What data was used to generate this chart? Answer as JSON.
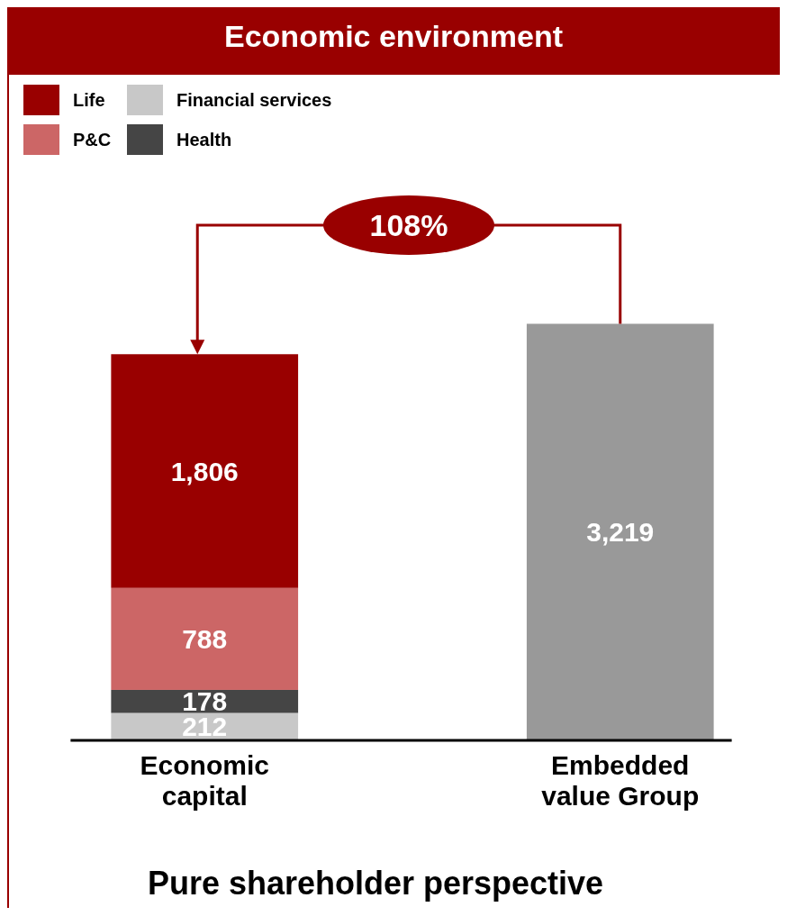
{
  "chart_data": {
    "type": "bar",
    "title": "Economic environment",
    "stacked": true,
    "legend": "top left",
    "categories": [
      "Economic\ncapital",
      "Embedded\nvalue Group"
    ],
    "series": [
      {
        "name": "Financial services",
        "color": "#c8c8c8",
        "values": [
          212,
          null
        ],
        "value_labels": [
          "212",
          null
        ]
      },
      {
        "name": "Health",
        "color": "#454545",
        "values": [
          178,
          null
        ],
        "value_labels": [
          "178",
          null
        ]
      },
      {
        "name": "P&C",
        "color": "#cc6666",
        "values": [
          788,
          null
        ],
        "value_labels": [
          "788",
          null
        ]
      },
      {
        "name": "Life",
        "color": "#990000",
        "values": [
          1806,
          null
        ],
        "value_labels": [
          "1,806",
          null
        ]
      },
      {
        "color": "#999999",
        "values": [
          null,
          3219
        ],
        "value_labels": [
          null,
          "3,219"
        ]
      }
    ],
    "annotations": [
      "108%",
      "Pure shareholder perspective"
    ]
  }
}
